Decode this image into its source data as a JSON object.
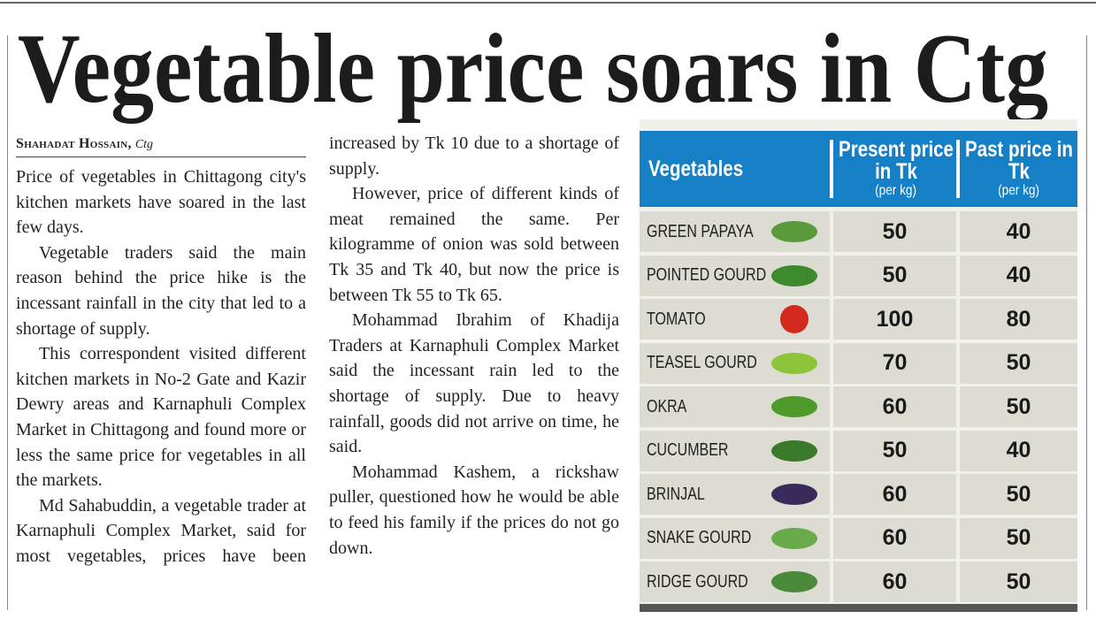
{
  "headline": "Vegetable price soars in Ctg",
  "byline": {
    "name": "Shahadat Hossain,",
    "place": "Ctg"
  },
  "paragraphs": [
    "Price of vegetables in Chittagong city's kitchen markets have soared in the last few days.",
    "Vegetable traders said the main reason behind the price hike is the incessant rainfall in the city that led to a shortage of supply.",
    "This correspondent visited different kitchen markets in No-2 Gate and Kazir Dewry areas and Karnaphuli Complex Market in Chittagong and found more or less the same price for vegetables in all the markets.",
    "Md Sahabuddin, a vegetable trader at Karnaphuli Complex Market, said for most vegetables, prices have been increased by Tk 10 due to a shortage of supply.",
    "However, price of different kinds of meat remained the same. Per kilogramme of onion was sold between Tk 35 and Tk 40, but now the price is between Tk 55 to Tk 65.",
    "Mohammad Ibrahim of Khadija Traders at Karnaphuli Complex Market said the incessant rain led to the shortage of supply. Due to heavy rainfall, goods did not arrive on time, he said.",
    "Mohammad Kashem, a rickshaw puller, questioned how he would be able to feed his family if the prices do not go down."
  ],
  "table": {
    "columns": [
      {
        "title": "Vegetables"
      },
      {
        "title": "Present price in Tk",
        "unit": "(per kg)"
      },
      {
        "title": "Past price in Tk",
        "unit": "(per kg)"
      }
    ],
    "rows": [
      [
        "GREEN PAPAYA",
        50,
        40
      ],
      [
        "POINTED GOURD",
        50,
        40
      ],
      [
        "TOMATO",
        100,
        80
      ],
      [
        "TEASEL GOURD",
        70,
        50
      ],
      [
        "OKRA",
        60,
        50
      ],
      [
        "CUCUMBER",
        50,
        40
      ],
      [
        "BRINJAL",
        60,
        50
      ],
      [
        "SNAKE GOURD",
        60,
        50
      ],
      [
        "RIDGE GOURD",
        60,
        50
      ]
    ]
  }
}
